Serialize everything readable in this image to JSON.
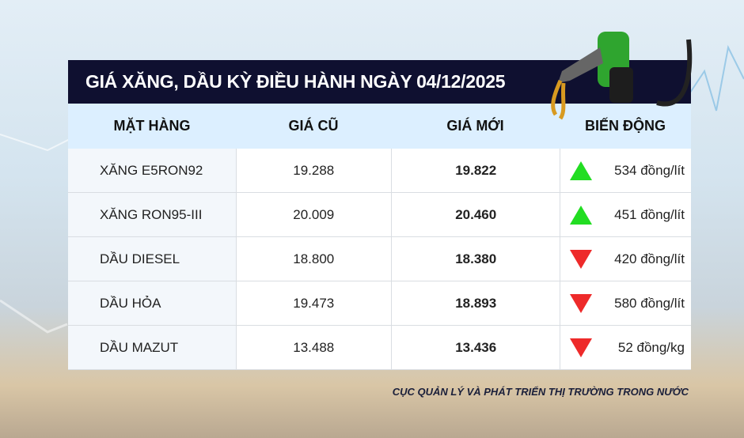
{
  "title": "GIÁ XĂNG, DẦU KỲ ĐIỀU HÀNH NGÀY 04/12/2025",
  "headers": [
    "MẶT HÀNG",
    "GIÁ CŨ",
    "GIÁ MỚI",
    "BIẾN ĐỘNG"
  ],
  "rows": [
    {
      "item": "XĂNG E5RON92",
      "old": "19.288",
      "new": "19.822",
      "change": "534 đồng/lít",
      "direction": "up"
    },
    {
      "item": "XĂNG RON95-III",
      "old": "20.009",
      "new": "20.460",
      "change": "451 đồng/lít",
      "direction": "up"
    },
    {
      "item": "DẦU DIESEL",
      "old": "18.800",
      "new": "18.380",
      "change": "420 đồng/lít",
      "direction": "down"
    },
    {
      "item": "DẦU HỎA",
      "old": "19.473",
      "new": "18.893",
      "change": "580 đồng/lít",
      "direction": "down"
    },
    {
      "item": "DẦU MAZUT",
      "old": "13.488",
      "new": "13.436",
      "change": "52 đồng/kg",
      "direction": "down"
    }
  ],
  "source": "CỤC QUẢN LÝ VÀ PHÁT TRIỂN THỊ TRƯỜNG TRONG NƯỚC",
  "colors": {
    "title_bg": "#0f1030",
    "header_bg": "#dcefff",
    "up": "#22dd22",
    "down": "#ee2a2a"
  },
  "icons": {
    "up": "triangle-up-icon",
    "down": "triangle-down-icon",
    "decoration": "fuel-nozzle-icon"
  }
}
